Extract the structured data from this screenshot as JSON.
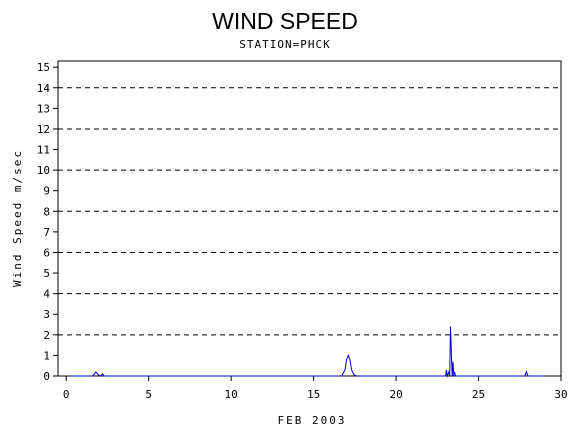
{
  "chart_data": {
    "type": "line",
    "title": "WIND SPEED",
    "subtitle": "STATION=PHCK",
    "xlabel": "FEB 2003",
    "ylabel": "Wind Speed m/sec",
    "xlim": [
      -0.5,
      30
    ],
    "ylim": [
      0,
      15.3
    ],
    "x_ticks": [
      0,
      5,
      10,
      15,
      20,
      25,
      30
    ],
    "y_ticks": [
      0,
      1,
      2,
      3,
      4,
      5,
      6,
      7,
      8,
      9,
      10,
      11,
      12,
      13,
      14,
      15
    ],
    "gridlines_y": [
      2,
      4,
      6,
      8,
      10,
      12,
      14
    ],
    "grid": "dashed horizontal at even values",
    "colors": {
      "series": "#0000cc",
      "axis": "#000000",
      "grid": "#000000"
    },
    "series": [
      {
        "x": [
          0.2,
          1.6,
          1.8,
          1.95,
          2.1,
          2.2,
          2.3,
          2.5,
          16.7,
          16.9,
          17.0,
          17.1,
          17.2,
          17.3,
          17.45,
          17.6,
          23.0,
          23.05,
          23.1,
          23.2,
          23.25,
          23.3,
          23.35,
          23.4,
          23.45,
          23.5,
          23.55,
          23.6,
          23.7,
          27.8,
          27.9,
          28.0,
          28.1,
          29.0
        ],
        "y": [
          0.0,
          0.0,
          0.2,
          0.05,
          0.0,
          0.1,
          0.0,
          0.0,
          0.0,
          0.3,
          0.8,
          1.0,
          0.8,
          0.3,
          0.05,
          0.0,
          0.0,
          0.3,
          0.0,
          0.2,
          0.0,
          2.4,
          1.2,
          0.0,
          0.7,
          0.0,
          0.2,
          0.0,
          0.0,
          0.0,
          0.2,
          0.0,
          0.0,
          0.0
        ]
      }
    ]
  }
}
